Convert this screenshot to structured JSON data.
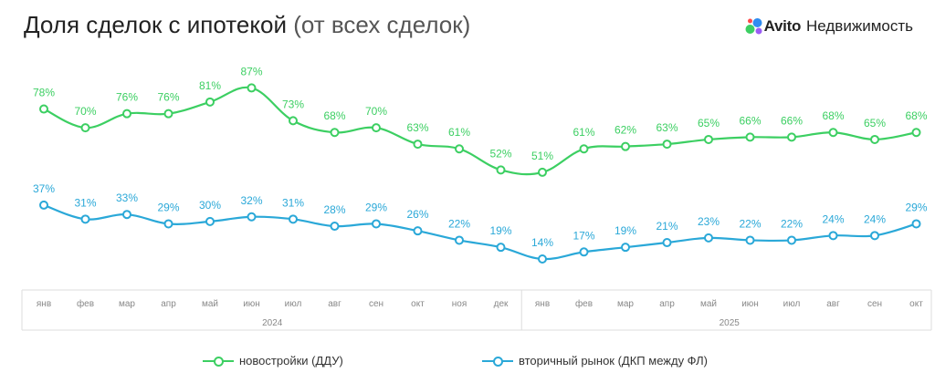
{
  "header": {
    "title_main": "Доля сделок с ипотекой",
    "title_sub": "(от всех сделок)",
    "brand_name": "Avito",
    "brand_suffix": "Недвижимость"
  },
  "colors": {
    "primary_series": "#3ccf62",
    "secondary_series": "#2aa8d8",
    "axis_text": "#888888",
    "frame": "#dddddd"
  },
  "icons": {
    "logo": "avito-dots-logo"
  },
  "chart_data": {
    "type": "line",
    "title": "Доля сделок с ипотекой (от всех сделок)",
    "x": [
      "янв",
      "фев",
      "мар",
      "апр",
      "май",
      "июн",
      "июл",
      "авг",
      "сен",
      "окт",
      "ноя",
      "дек",
      "янв",
      "фев",
      "мар",
      "апр",
      "май",
      "июн",
      "июл",
      "авг",
      "сен",
      "окт"
    ],
    "year_groups": [
      {
        "label": "2024",
        "start": 0,
        "end": 11
      },
      {
        "label": "2025",
        "start": 12,
        "end": 21
      }
    ],
    "series": [
      {
        "name": "новостройки (ДДУ)",
        "values": [
          78,
          70,
          76,
          76,
          81,
          87,
          73,
          68,
          70,
          63,
          61,
          52,
          51,
          61,
          62,
          63,
          65,
          66,
          66,
          68,
          65,
          68
        ],
        "labels": [
          "78%",
          "70%",
          "76%",
          "76%",
          "81%",
          "87%",
          "73%",
          "68%",
          "70%",
          "63%",
          "61%",
          "52%",
          "51%",
          "61%",
          "62%",
          "63%",
          "65%",
          "66%",
          "66%",
          "68%",
          "65%",
          "68%"
        ]
      },
      {
        "name": "вторичный рынок (ДКП между ФЛ)",
        "values": [
          37,
          31,
          33,
          29,
          30,
          32,
          31,
          28,
          29,
          26,
          22,
          19,
          14,
          17,
          19,
          21,
          23,
          22,
          22,
          24,
          24,
          29
        ],
        "labels": [
          "37%",
          "31%",
          "33%",
          "29%",
          "30%",
          "32%",
          "31%",
          "28%",
          "29%",
          "26%",
          "22%",
          "19%",
          "14%",
          "17%",
          "19%",
          "21%",
          "23%",
          "22%",
          "22%",
          "24%",
          "24%",
          "29%"
        ]
      }
    ],
    "unit": "%",
    "grid": false,
    "legend": "bottom"
  }
}
